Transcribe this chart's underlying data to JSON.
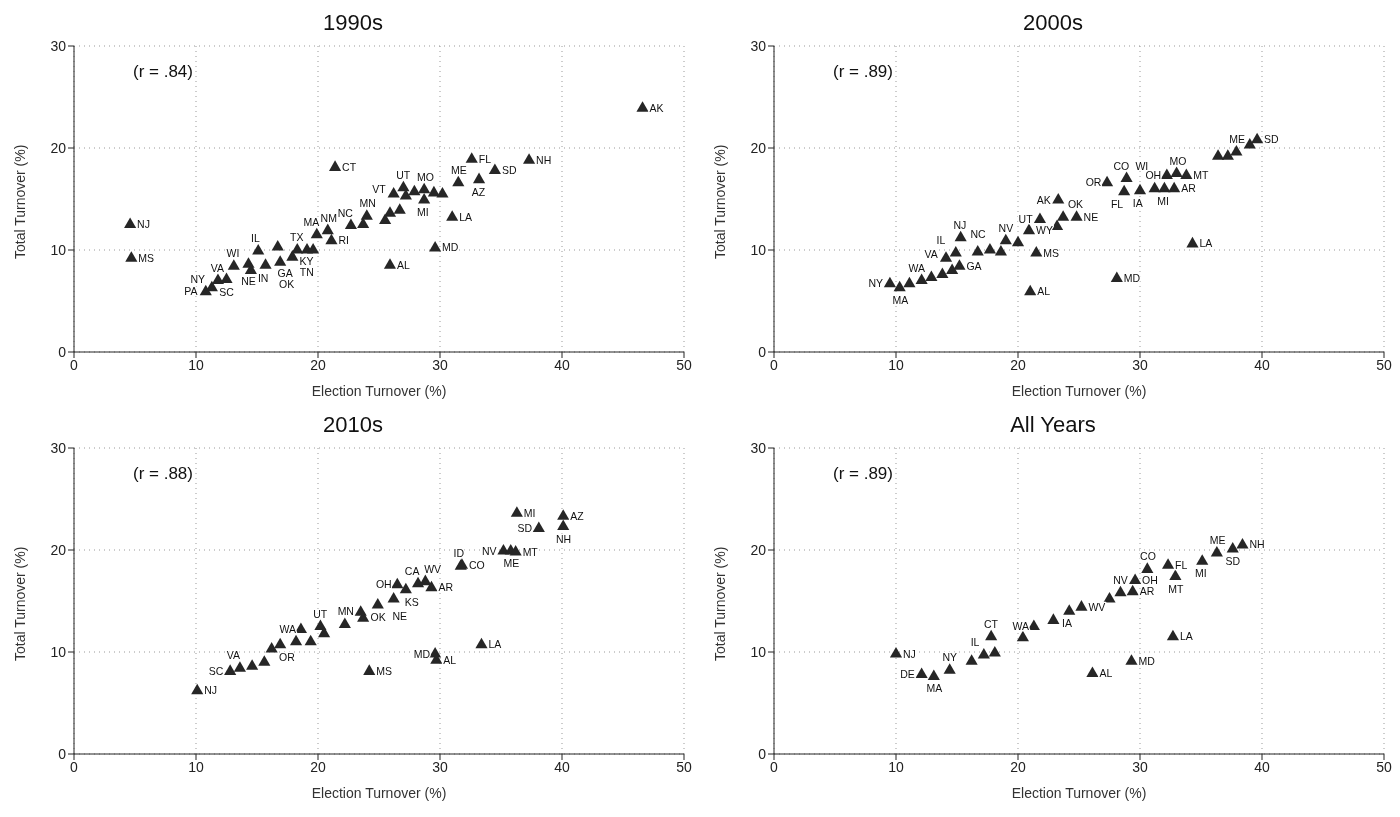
{
  "chart_data": [
    {
      "type": "scatter",
      "title": "1990s",
      "xlabel": "Election Turnover (%)",
      "ylabel": "Total Turnover (%)",
      "annotations": [
        "(r = .84)"
      ],
      "xlim": [
        0,
        50
      ],
      "xticks": [
        0,
        10,
        20,
        30,
        40,
        50
      ],
      "ylim": [
        0,
        30
      ],
      "yticks": [
        0,
        10,
        20,
        30
      ],
      "grid": true,
      "marker": "triangle",
      "series": [
        {
          "color": "#262626",
          "x": [
            46.6,
            32.6,
            37.3,
            34.5,
            33.2,
            31.5,
            21.4,
            4.6,
            4.7,
            31.0,
            29.6,
            25.9,
            21.1,
            19.9,
            20.8,
            22.7,
            23.7,
            24.0,
            25.5,
            25.9,
            26.7,
            26.2,
            27.0,
            27.2,
            27.9,
            28.7,
            28.7,
            29.5,
            30.2,
            11.3,
            10.8,
            11.8,
            12.5,
            13.1,
            14.3,
            14.5,
            15.7,
            15.1,
            16.7,
            16.9,
            17.9,
            18.3,
            19.1,
            19.6
          ],
          "values": [
            23.9,
            18.9,
            18.8,
            17.8,
            16.9,
            16.6,
            18.1,
            12.5,
            9.2,
            13.2,
            10.2,
            8.5,
            10.9,
            11.5,
            11.9,
            12.4,
            12.5,
            13.3,
            12.9,
            13.6,
            13.9,
            15.5,
            16.1,
            15.3,
            15.7,
            15.9,
            14.9,
            15.6,
            15.5,
            6.3,
            5.9,
            7.0,
            7.1,
            8.4,
            8.6,
            8.0,
            8.5,
            9.9,
            10.3,
            8.8,
            9.3,
            10.0,
            10.0,
            10.0
          ],
          "value_labels": [
            "AK",
            "FL",
            "NH",
            "SD",
            "AZ",
            "ME",
            "CT",
            "NJ",
            "MS",
            "LA",
            "MD",
            "AL",
            "RI",
            "MA",
            "NM",
            "NC",
            null,
            "MN",
            null,
            null,
            null,
            "VT",
            "UT",
            null,
            null,
            "MO",
            "MI",
            null,
            null,
            "NY",
            "PA",
            "VA",
            "SC",
            "WI",
            "NE",
            "IN",
            "GA",
            "IL",
            null,
            "OK",
            "KY",
            "TX",
            "TN",
            null
          ]
        }
      ]
    },
    {
      "type": "scatter",
      "title": "2000s",
      "xlabel": "Election Turnover (%)",
      "ylabel": "Total Turnover (%)",
      "annotations": [
        "(r = .89)"
      ],
      "xlim": [
        0,
        50
      ],
      "xticks": [
        0,
        10,
        20,
        30,
        40,
        50
      ],
      "ylim": [
        0,
        30
      ],
      "yticks": [
        0,
        10,
        20,
        30
      ],
      "grid": true,
      "marker": "triangle",
      "series": [
        {
          "color": "#262626",
          "x": [
            39.6,
            36.4,
            37.2,
            37.9,
            39.0,
            33.8,
            33.0,
            32.2,
            27.3,
            28.9,
            28.7,
            30.0,
            31.2,
            32.0,
            32.8,
            23.3,
            24.8,
            23.7,
            21.8,
            23.2,
            20.9,
            20.0,
            19.0,
            21.5,
            21.0,
            28.1,
            34.3,
            15.3,
            14.1,
            14.9,
            15.2,
            16.7,
            17.7,
            18.6,
            9.5,
            10.3,
            11.1,
            12.1,
            12.9,
            13.8,
            14.6
          ],
          "values": [
            20.8,
            19.2,
            19.2,
            19.6,
            20.3,
            17.3,
            17.5,
            17.3,
            16.6,
            17.0,
            15.7,
            15.8,
            16.0,
            16.0,
            16.0,
            14.9,
            13.2,
            13.2,
            13.0,
            12.3,
            11.9,
            10.7,
            10.9,
            9.7,
            5.9,
            7.2,
            10.6,
            11.2,
            9.2,
            9.7,
            8.4,
            9.8,
            10.0,
            9.8,
            6.7,
            6.3,
            6.7,
            7.0,
            7.3,
            7.6,
            8.0
          ],
          "value_labels": [
            "SD",
            null,
            null,
            "ME",
            null,
            "MT",
            "MO",
            "OH",
            "OR",
            "CO",
            "FL",
            "IA",
            "WI",
            "MI",
            "AR",
            "AK",
            "NE",
            "OK",
            "UT",
            null,
            "WY",
            null,
            "NV",
            "MS",
            "AL",
            "MD",
            "LA",
            "NJ",
            "VA",
            "IL",
            "GA",
            "NC",
            null,
            null,
            "NY",
            "MA",
            null,
            "WA",
            null,
            null,
            null
          ]
        }
      ]
    },
    {
      "type": "scatter",
      "title": "2010s",
      "xlabel": "Election Turnover (%)",
      "ylabel": "Total Turnover (%)",
      "annotations": [
        "(r = .88)"
      ],
      "xlim": [
        0,
        50
      ],
      "xticks": [
        0,
        10,
        20,
        30,
        40,
        50
      ],
      "ylim": [
        0,
        30
      ],
      "yticks": [
        0,
        10,
        20,
        30
      ],
      "grid": true,
      "marker": "triangle",
      "series": [
        {
          "color": "#262626",
          "x": [
            36.3,
            40.1,
            40.1,
            38.1,
            35.2,
            35.8,
            36.2,
            31.7,
            31.8,
            26.5,
            27.2,
            28.2,
            28.8,
            29.3,
            24.9,
            26.2,
            23.7,
            23.5,
            22.2,
            18.6,
            20.2,
            20.5,
            19.4,
            18.2,
            16.9,
            16.2,
            15.6,
            14.6,
            13.6,
            12.8,
            10.1,
            24.2,
            29.6,
            29.7,
            33.4
          ],
          "values": [
            23.6,
            23.3,
            22.3,
            22.1,
            19.9,
            19.9,
            19.8,
            18.4,
            18.5,
            16.6,
            16.1,
            16.7,
            16.9,
            16.3,
            14.6,
            15.2,
            13.3,
            13.9,
            12.7,
            12.2,
            12.5,
            11.8,
            11.0,
            11.0,
            10.7,
            10.3,
            9.0,
            8.6,
            8.4,
            8.1,
            6.2,
            8.1,
            9.8,
            9.2,
            10.7
          ],
          "value_labels": [
            "MI",
            "AZ",
            "NH",
            "SD",
            "NV",
            "ME",
            "MT",
            "ID",
            "CO",
            "OH",
            "KS",
            "CA",
            "WV",
            "AR",
            "OK",
            "NE",
            null,
            null,
            "MN",
            "WA",
            "UT",
            null,
            null,
            null,
            "OR",
            null,
            null,
            null,
            "VA",
            "SC",
            "NJ",
            "MS",
            "MD",
            "AL",
            "LA"
          ]
        }
      ]
    },
    {
      "type": "scatter",
      "title": "All Years",
      "xlabel": "Election Turnover (%)",
      "ylabel": "Total Turnover (%)",
      "annotations": [
        "(r = .89)"
      ],
      "xlim": [
        0,
        50
      ],
      "xticks": [
        0,
        10,
        20,
        30,
        40,
        50
      ],
      "ylim": [
        0,
        30
      ],
      "yticks": [
        0,
        10,
        20,
        30
      ],
      "grid": true,
      "marker": "triangle",
      "series": [
        {
          "color": "#262626",
          "x": [
            38.4,
            37.6,
            36.3,
            35.1,
            32.9,
            32.3,
            30.6,
            29.6,
            29.4,
            28.4,
            27.5,
            25.2,
            24.2,
            22.9,
            21.3,
            20.4,
            17.8,
            18.1,
            17.2,
            16.2,
            10.0,
            13.1,
            12.1,
            14.4,
            26.1,
            29.3,
            32.7
          ],
          "values": [
            20.5,
            20.1,
            19.7,
            18.9,
            17.4,
            18.5,
            18.1,
            17.0,
            15.9,
            15.8,
            15.2,
            14.4,
            14.0,
            13.1,
            12.5,
            11.4,
            11.5,
            9.9,
            9.7,
            9.1,
            9.8,
            7.6,
            7.8,
            8.2,
            7.9,
            9.1,
            11.5
          ],
          "value_labels": [
            "NH",
            "SD",
            "ME",
            "MI",
            "MT",
            "FL",
            "CO",
            "OH",
            "AR",
            "NV",
            null,
            "WV",
            "IA",
            null,
            "WA",
            null,
            "CT",
            null,
            "IL",
            null,
            "NJ",
            "MA",
            "DE",
            "NY",
            "AL",
            "MD",
            "LA"
          ]
        }
      ]
    }
  ]
}
